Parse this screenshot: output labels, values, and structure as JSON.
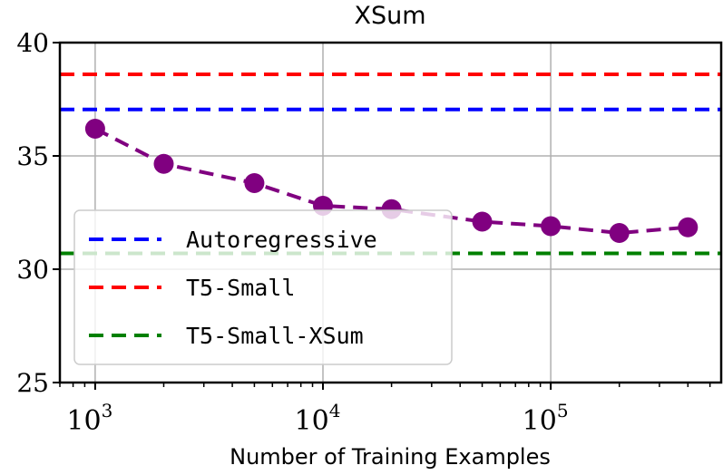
{
  "chart_data": {
    "type": "line",
    "title": "XSum",
    "xlabel": "Number of Training Examples",
    "ylabel": "",
    "xscale": "log",
    "xlim": [
      700,
      560000
    ],
    "ylim": [
      25,
      40
    ],
    "yticks": [
      25,
      30,
      35,
      40
    ],
    "xticks": [
      {
        "base": "10",
        "exp": "3",
        "value": 1000
      },
      {
        "base": "10",
        "exp": "4",
        "value": 10000
      },
      {
        "base": "10",
        "exp": "5",
        "value": 100000
      }
    ],
    "grid": true,
    "legend_position": "lower-left",
    "series": [
      {
        "type": "line-markers",
        "color": "#800080",
        "linestyle": "dashed",
        "x": [
          1000,
          2000,
          5000,
          10000,
          20000,
          50000,
          100000,
          200000,
          400000
        ],
        "y": [
          36.2,
          34.65,
          33.8,
          32.8,
          32.65,
          32.1,
          31.9,
          31.6,
          31.85
        ]
      },
      {
        "name": "Autoregressive",
        "type": "hline",
        "color": "#0000ff",
        "linestyle": "dashed",
        "y": 37.05
      },
      {
        "name": "T5-Small",
        "type": "hline",
        "color": "#ff0000",
        "linestyle": "dashed",
        "y": 38.6
      },
      {
        "name": "T5-Small-XSum",
        "type": "hline",
        "color": "#008000",
        "linestyle": "dashed",
        "y": 30.7
      }
    ]
  }
}
